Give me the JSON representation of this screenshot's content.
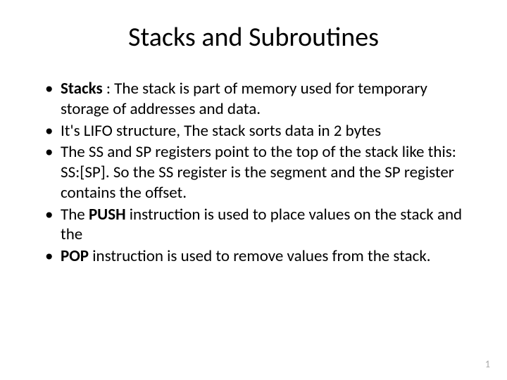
{
  "slide": {
    "title": "Stacks and Subroutines",
    "title_fontsize": 38,
    "body_fontsize": 23,
    "background_color": "#ffffff",
    "text_color": "#000000",
    "pagenum_color": "#a6a6a6",
    "bullets": [
      {
        "lead_bold": "Stacks",
        "rest": " : The stack is part of memory used for temporary storage of addresses and data."
      },
      {
        "text": "It's LIFO structure, The stack sorts data in 2 bytes"
      },
      {
        "text": "The SS and SP registers point to the top of the stack like this: SS:[SP]. So the SS register is the segment and the SP register contains the offset."
      },
      {
        "pre": "The ",
        "bold": "PUSH",
        "post": " instruction is used to place values on the stack and the"
      },
      {
        "bold": "POP",
        "post": " instruction is used to remove values from the stack."
      }
    ],
    "page_number": "1"
  }
}
